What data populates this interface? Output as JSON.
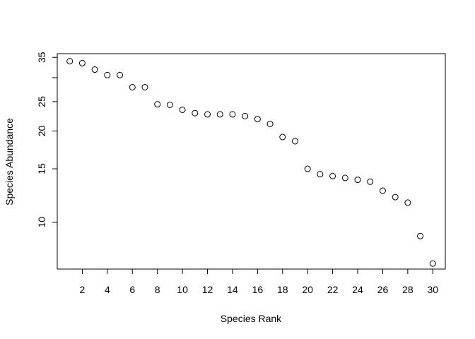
{
  "chart_data": {
    "type": "scatter",
    "title": "",
    "xlabel": "Species Rank",
    "ylabel": "Species Abundance",
    "log_y": true,
    "grid": false,
    "xlim": [
      0,
      31
    ],
    "ylim": [
      7,
      36
    ],
    "x_ticks": [
      2,
      4,
      6,
      8,
      10,
      12,
      14,
      16,
      18,
      20,
      22,
      24,
      26,
      28,
      30
    ],
    "y_ticks": [
      10,
      15,
      20,
      25,
      35
    ],
    "y_minor_ticks": [
      30
    ],
    "x": [
      1,
      2,
      3,
      4,
      5,
      6,
      7,
      8,
      9,
      10,
      11,
      12,
      13,
      14,
      15,
      16,
      17,
      18,
      19,
      20,
      21,
      22,
      23,
      24,
      25,
      26,
      27,
      28,
      29,
      30
    ],
    "y": [
      34.0,
      33.5,
      31.9,
      30.6,
      30.6,
      27.9,
      27.9,
      24.5,
      24.4,
      23.5,
      22.9,
      22.7,
      22.7,
      22.7,
      22.4,
      21.9,
      21.1,
      19.1,
      18.5,
      15.0,
      14.4,
      14.2,
      14.0,
      13.8,
      13.6,
      12.7,
      12.1,
      11.6,
      9.0,
      7.3
    ]
  }
}
